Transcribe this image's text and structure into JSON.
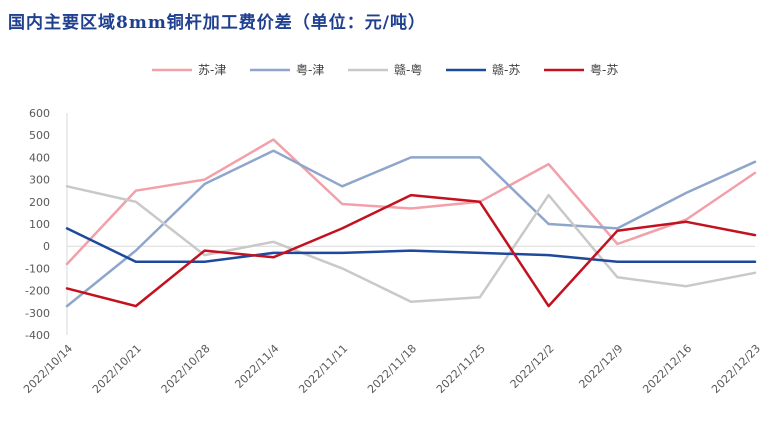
{
  "chart_data": {
    "type": "line",
    "title": "国内主要区域8mm铜杆加工费价差（单位：元/吨）",
    "categories": [
      "2022/10/14",
      "2022/10/21",
      "2022/10/28",
      "2022/11/4",
      "2022/11/11",
      "2022/11/18",
      "2022/11/25",
      "2022/12/2",
      "2022/12/9",
      "2022/12/16",
      "2022/12/23"
    ],
    "ylim": [
      -400,
      600
    ],
    "yticks": [
      "600",
      "500",
      "400",
      "300",
      "200",
      "100",
      "0",
      "-100",
      "-200",
      "-300",
      "-400"
    ],
    "grid": false,
    "legend_position": "top",
    "series": [
      {
        "name": "苏-津",
        "color": "#f2a0aa",
        "values": [
          -80,
          250,
          300,
          480,
          190,
          170,
          200,
          370,
          10,
          120,
          330
        ]
      },
      {
        "name": "粤-津",
        "color": "#8fa6cc",
        "values": [
          -270,
          -20,
          280,
          430,
          270,
          400,
          400,
          100,
          80,
          240,
          380
        ]
      },
      {
        "name": "赣-粤",
        "color": "#c9c9c9",
        "values": [
          270,
          200,
          -40,
          20,
          -100,
          -250,
          -230,
          230,
          -140,
          -180,
          -120
        ]
      },
      {
        "name": "赣-苏",
        "color": "#1f4a9b",
        "values": [
          80,
          -70,
          -70,
          -30,
          -30,
          -20,
          -30,
          -40,
          -70,
          -70,
          -70
        ]
      },
      {
        "name": "粤-苏",
        "color": "#c3121f",
        "values": [
          -190,
          -270,
          -20,
          -50,
          80,
          230,
          200,
          -270,
          70,
          110,
          50
        ]
      }
    ]
  }
}
